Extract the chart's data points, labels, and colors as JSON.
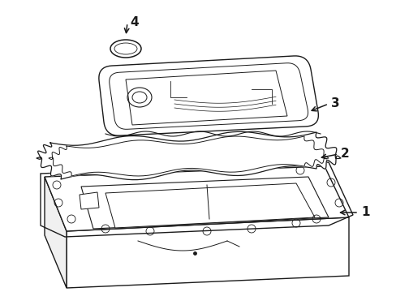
{
  "background_color": "#ffffff",
  "line_color": "#1a1a1a",
  "lw": 1.0
}
